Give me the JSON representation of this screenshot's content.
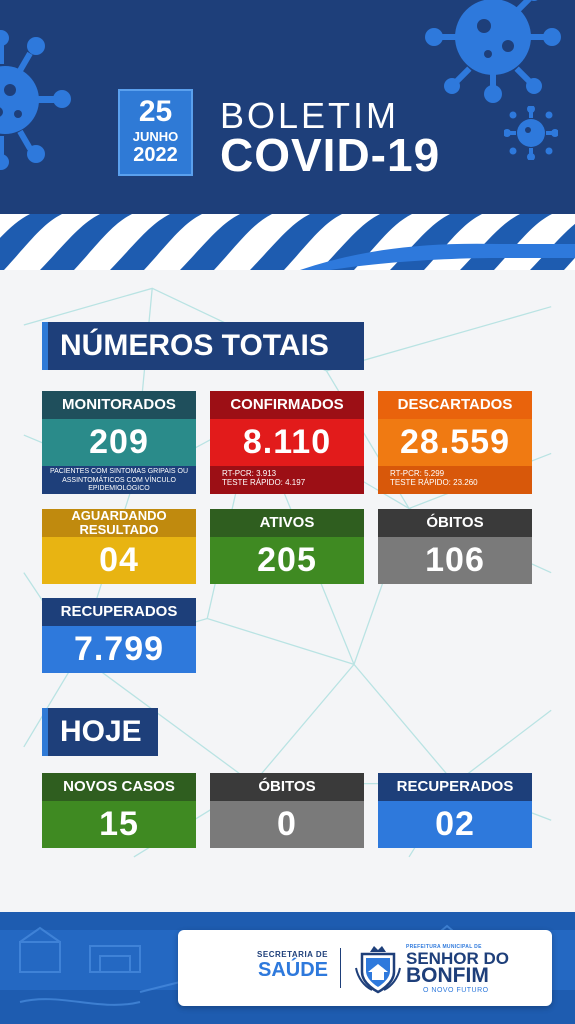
{
  "header": {
    "date_day": "25",
    "date_month": "JUNHO",
    "date_year": "2022",
    "title_line1": "BOLETIM",
    "title_line2": "COVID-19",
    "background_color": "#1e3f7a",
    "virus_icon_color": "#2e79dc"
  },
  "totais": {
    "title": "NÚMEROS TOTAIS",
    "monitorados": {
      "label": "MONITORADOS",
      "value": "209",
      "note": "PACIENTES COM SINTOMAS GRIPAIS OU ASSINTOMÁTICOS COM VÍNCULO EPIDEMIOLÓGICO"
    },
    "confirmados": {
      "label": "CONFIRMADOS",
      "value": "8.110",
      "note_line1": "RT-PCR: 3.913",
      "note_line2": "TESTE RÁPIDO: 4.197"
    },
    "descartados": {
      "label": "DESCARTADOS",
      "value": "28.559",
      "note_line1": "RT-PCR: 5.299",
      "note_line2": "TESTE RÁPIDO: 23.260"
    },
    "aguardando": {
      "label_line1": "AGUARDANDO",
      "label_line2": "RESULTADO",
      "value": "04"
    },
    "ativos": {
      "label": "ATIVOS",
      "value": "205"
    },
    "obitos": {
      "label": "ÓBITOS",
      "value": "106"
    },
    "recuperados": {
      "label": "RECUPERADOS",
      "value": "7.799"
    }
  },
  "hoje": {
    "title": "HOJE",
    "novos_casos": {
      "label": "NOVOS CASOS",
      "value": "15"
    },
    "obitos": {
      "label": "ÓBITOS",
      "value": "0"
    },
    "recuperados": {
      "label": "RECUPERADOS",
      "value": "02"
    }
  },
  "footer": {
    "secretaria_small": "SECRETARIA DE",
    "secretaria_big": "SAÚDE",
    "prefeitura_small": "PREFEITURA MUNICIPAL DE",
    "city_line1": "SENHOR DO",
    "city_line2": "BONFIM",
    "slogan": "O NOVO FUTURO"
  }
}
